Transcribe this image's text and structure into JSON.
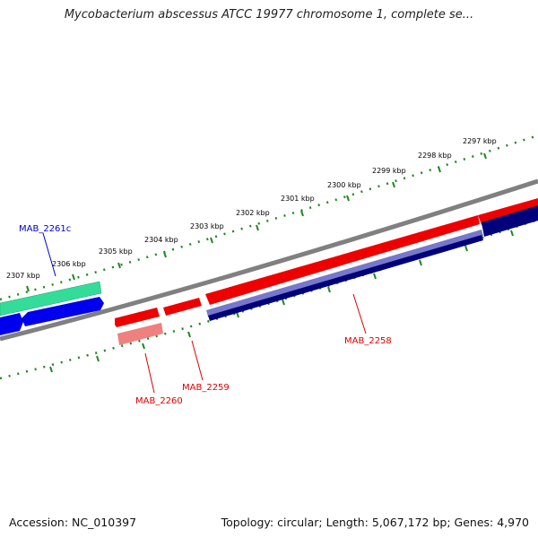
{
  "title": "Mycobacterium abscessus ATCC 19977 chromosome 1, complete se...",
  "footer": {
    "accession": "Accession: NC_010397",
    "summary": "Topology: circular; Length: 5,067,172 bp; Genes: 4,970"
  },
  "scale_labels": [
    "2297 kbp",
    "2298 kbp",
    "2299 kbp",
    "2300 kbp",
    "2301 kbp",
    "2302 kbp",
    "2303 kbp",
    "2304 kbp",
    "2305 kbp",
    "2306 kbp",
    "2307 kbp"
  ],
  "genes": [
    {
      "label": "MAB_2261c",
      "color": "#0000cc"
    },
    {
      "label": "MAB_2260",
      "color": "#dd0000"
    },
    {
      "label": "MAB_2259",
      "color": "#dd0000"
    },
    {
      "label": "MAB_2258",
      "color": "#dd0000"
    }
  ],
  "colors": {
    "backbone": "#808080",
    "scale": "#228822",
    "gene_red": "#ee0000",
    "gene_blue": "#0000ee",
    "gene_navy": "#00007a",
    "cds_green": "#33dd99",
    "cds_pink": "#ee8080",
    "cds_lavender": "#7777cc"
  }
}
